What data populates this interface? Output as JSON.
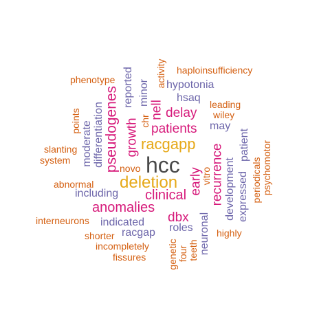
{
  "colors": {
    "dark": "#4a4a4a",
    "gold": "#e6a817",
    "magenta": "#d6197a",
    "purple": "#6d66aa",
    "orange": "#d45f10"
  },
  "words": [
    {
      "text": "hcc",
      "color": "dark"
    },
    {
      "text": "deletion",
      "color": "gold"
    },
    {
      "text": "racgapp",
      "color": "gold"
    },
    {
      "text": "clinical",
      "color": "magenta"
    },
    {
      "text": "anomalies",
      "color": "magenta"
    },
    {
      "text": "patients",
      "color": "magenta"
    },
    {
      "text": "delay",
      "color": "magenta"
    },
    {
      "text": "dbx",
      "color": "magenta"
    },
    {
      "text": "pseudogenes",
      "color": "magenta"
    },
    {
      "text": "growth",
      "color": "magenta"
    },
    {
      "text": "nell",
      "color": "magenta"
    },
    {
      "text": "recurrence",
      "color": "magenta"
    },
    {
      "text": "early",
      "color": "magenta"
    },
    {
      "text": "hypotonia",
      "color": "purple"
    },
    {
      "text": "hsaq",
      "color": "purple"
    },
    {
      "text": "may",
      "color": "purple"
    },
    {
      "text": "including",
      "color": "purple"
    },
    {
      "text": "indicated",
      "color": "purple"
    },
    {
      "text": "racgap",
      "color": "purple"
    },
    {
      "text": "roles",
      "color": "purple"
    },
    {
      "text": "reported",
      "color": "purple"
    },
    {
      "text": "minor",
      "color": "purple"
    },
    {
      "text": "moderate",
      "color": "purple"
    },
    {
      "text": "differentiation",
      "color": "purple"
    },
    {
      "text": "neuronal",
      "color": "purple"
    },
    {
      "text": "development",
      "color": "purple"
    },
    {
      "text": "expressed",
      "color": "purple"
    },
    {
      "text": "patient",
      "color": "purple"
    },
    {
      "text": "haploinsufficiency",
      "color": "orange"
    },
    {
      "text": "phenotype",
      "color": "orange"
    },
    {
      "text": "activity",
      "color": "orange"
    },
    {
      "text": "leading",
      "color": "orange"
    },
    {
      "text": "wiley",
      "color": "orange"
    },
    {
      "text": "chr",
      "color": "orange"
    },
    {
      "text": "points",
      "color": "orange"
    },
    {
      "text": "slanting",
      "color": "orange"
    },
    {
      "text": "system",
      "color": "orange"
    },
    {
      "text": "novo",
      "color": "orange"
    },
    {
      "text": "vitro",
      "color": "orange"
    },
    {
      "text": "abnormal",
      "color": "orange"
    },
    {
      "text": "interneurons",
      "color": "orange"
    },
    {
      "text": "shorter",
      "color": "orange"
    },
    {
      "text": "incompletely",
      "color": "orange"
    },
    {
      "text": "fissures",
      "color": "orange"
    },
    {
      "text": "genetic",
      "color": "orange"
    },
    {
      "text": "four",
      "color": "orange"
    },
    {
      "text": "teeth",
      "color": "orange"
    },
    {
      "text": "highly",
      "color": "orange"
    },
    {
      "text": "periodicals",
      "color": "orange"
    },
    {
      "text": "psychomotor",
      "color": "orange"
    }
  ]
}
